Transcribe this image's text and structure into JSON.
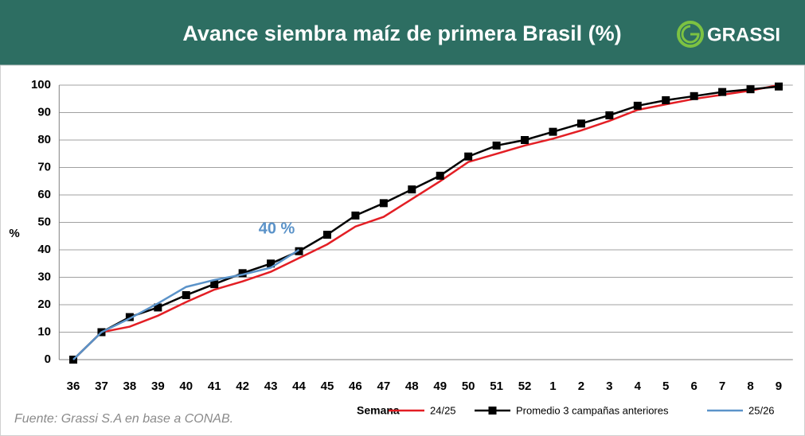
{
  "chart_data": {
    "type": "line",
    "title": "Avance siembra maíz de primera Brasil (%)",
    "logo": "GRASSI",
    "ylabel": "%",
    "xlabel": "Semana",
    "source": "Fuente: Grassi S.A en base a CONAB.",
    "annotation": "40 %",
    "categories": [
      "36",
      "37",
      "38",
      "39",
      "40",
      "41",
      "42",
      "43",
      "44",
      "45",
      "46",
      "47",
      "48",
      "49",
      "50",
      "51",
      "52",
      "1",
      "2",
      "3",
      "4",
      "5",
      "6",
      "7",
      "8",
      "9"
    ],
    "series": [
      {
        "name": "24/25",
        "color": "#e31e24",
        "marker": false,
        "values": [
          0,
          10,
          12,
          16,
          21,
          25.5,
          28.5,
          32,
          37,
          42,
          48.5,
          52,
          58.5,
          65,
          72,
          75,
          78,
          80.5,
          83.5,
          87,
          91,
          93,
          95,
          96.5,
          98,
          100
        ]
      },
      {
        "name": "Promedio 3 campañas anteriores",
        "color": "#000000",
        "marker": true,
        "values": [
          0,
          10,
          15.5,
          19,
          23.5,
          27.5,
          31.5,
          35,
          39.5,
          45.5,
          52.5,
          57,
          62,
          67,
          74,
          78,
          80,
          83,
          86,
          89,
          92.5,
          94.5,
          96,
          97.5,
          98.5,
          99.5
        ]
      },
      {
        "name": "25/26",
        "color": "#5b93c9",
        "marker": false,
        "values": [
          0,
          10,
          15,
          20.5,
          26.5,
          29,
          31,
          33.5,
          40,
          null,
          null,
          null,
          null,
          null,
          null,
          null,
          null,
          null,
          null,
          null,
          null,
          null,
          null,
          null,
          null,
          null
        ]
      }
    ],
    "ylim": [
      0,
      100
    ],
    "yticks": [
      0,
      10,
      20,
      30,
      40,
      50,
      60,
      70,
      80,
      90,
      100
    ],
    "grid": true
  }
}
